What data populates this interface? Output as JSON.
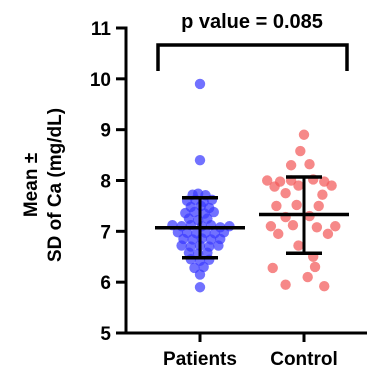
{
  "chart_data": {
    "type": "scatter",
    "ylabel_line1": "Mean ±",
    "ylabel_line2": "SD of Ca (mg/dL)",
    "ylim": [
      5,
      11
    ],
    "yticks": [
      "5",
      "6",
      "7",
      "8",
      "9",
      "10",
      "11"
    ],
    "categories": [
      "Patients",
      "Control"
    ],
    "grid": false,
    "annotation": "p value = 0.085",
    "colors": {
      "patients": "#3a3aff",
      "control": "#f25a5a",
      "axis": "#000000"
    },
    "series": [
      {
        "name": "Patients",
        "mean": 7.07,
        "sd_low": 6.48,
        "sd_high": 7.66,
        "points": [
          {
            "dx": 0.0,
            "y": 9.9
          },
          {
            "dx": 0.0,
            "y": 8.4
          },
          {
            "dx": -0.08,
            "y": 7.72
          },
          {
            "dx": -0.02,
            "y": 7.74
          },
          {
            "dx": 0.06,
            "y": 7.71
          },
          {
            "dx": -0.14,
            "y": 7.6
          },
          {
            "dx": -0.05,
            "y": 7.62
          },
          {
            "dx": 0.04,
            "y": 7.58
          },
          {
            "dx": 0.13,
            "y": 7.62
          },
          {
            "dx": -0.1,
            "y": 7.48
          },
          {
            "dx": 0.01,
            "y": 7.5
          },
          {
            "dx": 0.1,
            "y": 7.46
          },
          {
            "dx": -0.16,
            "y": 7.36
          },
          {
            "dx": -0.06,
            "y": 7.38
          },
          {
            "dx": 0.05,
            "y": 7.35
          },
          {
            "dx": 0.15,
            "y": 7.38
          },
          {
            "dx": -0.12,
            "y": 7.25
          },
          {
            "dx": -0.02,
            "y": 7.22
          },
          {
            "dx": 0.08,
            "y": 7.25
          },
          {
            "dx": -0.3,
            "y": 7.12
          },
          {
            "dx": -0.2,
            "y": 7.1
          },
          {
            "dx": -0.1,
            "y": 7.12
          },
          {
            "dx": 0.02,
            "y": 7.1
          },
          {
            "dx": 0.12,
            "y": 7.12
          },
          {
            "dx": 0.22,
            "y": 7.08
          },
          {
            "dx": 0.32,
            "y": 7.1
          },
          {
            "dx": -0.24,
            "y": 6.98
          },
          {
            "dx": -0.14,
            "y": 6.97
          },
          {
            "dx": -0.04,
            "y": 6.96
          },
          {
            "dx": 0.06,
            "y": 6.97
          },
          {
            "dx": 0.16,
            "y": 6.96
          },
          {
            "dx": 0.26,
            "y": 6.98
          },
          {
            "dx": -0.18,
            "y": 6.85
          },
          {
            "dx": -0.08,
            "y": 6.84
          },
          {
            "dx": 0.02,
            "y": 6.86
          },
          {
            "dx": 0.12,
            "y": 6.84
          },
          {
            "dx": 0.22,
            "y": 6.85
          },
          {
            "dx": -0.2,
            "y": 6.72
          },
          {
            "dx": -0.1,
            "y": 6.7
          },
          {
            "dx": 0.0,
            "y": 6.72
          },
          {
            "dx": 0.1,
            "y": 6.7
          },
          {
            "dx": 0.2,
            "y": 6.72
          },
          {
            "dx": -0.12,
            "y": 6.58
          },
          {
            "dx": -0.02,
            "y": 6.56
          },
          {
            "dx": 0.08,
            "y": 6.58
          },
          {
            "dx": -0.1,
            "y": 6.45
          },
          {
            "dx": 0.0,
            "y": 6.42
          },
          {
            "dx": 0.1,
            "y": 6.44
          },
          {
            "dx": -0.06,
            "y": 6.28
          },
          {
            "dx": 0.04,
            "y": 6.3
          },
          {
            "dx": 0.0,
            "y": 6.15
          },
          {
            "dx": 0.0,
            "y": 5.9
          }
        ]
      },
      {
        "name": "Control",
        "mean": 7.33,
        "sd_low": 6.57,
        "sd_high": 8.07,
        "points": [
          {
            "dx": 0.0,
            "y": 8.9
          },
          {
            "dx": -0.04,
            "y": 8.58
          },
          {
            "dx": -0.14,
            "y": 8.3
          },
          {
            "dx": 0.06,
            "y": 8.32
          },
          {
            "dx": -0.4,
            "y": 8.0
          },
          {
            "dx": -0.26,
            "y": 7.98
          },
          {
            "dx": -0.14,
            "y": 8.0
          },
          {
            "dx": 0.1,
            "y": 8.02
          },
          {
            "dx": 0.22,
            "y": 7.98
          },
          {
            "dx": -0.32,
            "y": 7.88
          },
          {
            "dx": -0.06,
            "y": 7.9
          },
          {
            "dx": 0.3,
            "y": 7.9
          },
          {
            "dx": -0.2,
            "y": 7.75
          },
          {
            "dx": 0.2,
            "y": 7.72
          },
          {
            "dx": -0.3,
            "y": 7.5
          },
          {
            "dx": -0.08,
            "y": 7.52
          },
          {
            "dx": 0.16,
            "y": 7.5
          },
          {
            "dx": -0.2,
            "y": 7.28
          },
          {
            "dx": 0.06,
            "y": 7.3
          },
          {
            "dx": -0.36,
            "y": 7.1
          },
          {
            "dx": -0.12,
            "y": 7.12
          },
          {
            "dx": 0.14,
            "y": 7.08
          },
          {
            "dx": 0.34,
            "y": 7.1
          },
          {
            "dx": -0.28,
            "y": 6.95
          },
          {
            "dx": 0.26,
            "y": 6.95
          },
          {
            "dx": -0.06,
            "y": 6.72
          },
          {
            "dx": 0.1,
            "y": 6.5
          },
          {
            "dx": -0.34,
            "y": 6.28
          },
          {
            "dx": 0.12,
            "y": 6.3
          },
          {
            "dx": 0.04,
            "y": 6.1
          },
          {
            "dx": -0.2,
            "y": 5.95
          },
          {
            "dx": 0.22,
            "y": 5.92
          }
        ]
      }
    ]
  }
}
